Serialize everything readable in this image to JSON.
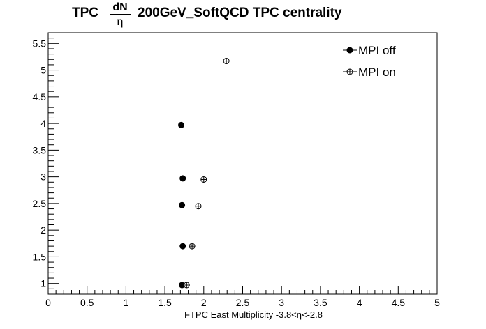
{
  "chart_data": {
    "type": "scatter",
    "title": {
      "prefix": "TPC",
      "fraction_numerator": "dN",
      "fraction_denominator": "η",
      "suffix": "200GeV_SoftQCD TPC centrality"
    },
    "xlabel": "FTPC East Multiplicity -3.8<η<-2.8",
    "ylabel": "",
    "xlim": [
      0,
      5
    ],
    "ylim": [
      0.8,
      5.7
    ],
    "x_ticks": [
      "0",
      "0.5",
      "1",
      "1.5",
      "2",
      "2.5",
      "3",
      "3.5",
      "4",
      "4.5",
      "5"
    ],
    "y_ticks": [
      "1",
      "1.5",
      "2",
      "2.5",
      "3",
      "3.5",
      "4",
      "4.5",
      "5",
      "5.5"
    ],
    "grid": false,
    "legend_position": "top-right",
    "series": [
      {
        "name": "MPI off",
        "marker": "filled-circle",
        "color": "#000000",
        "points": [
          {
            "x": 1.72,
            "y": 0.97
          },
          {
            "x": 1.73,
            "y": 1.7
          },
          {
            "x": 1.72,
            "y": 2.47
          },
          {
            "x": 1.73,
            "y": 2.97
          },
          {
            "x": 1.71,
            "y": 3.97
          }
        ]
      },
      {
        "name": "MPI on",
        "marker": "open-circle-plus",
        "color": "#000000",
        "points": [
          {
            "x": 1.78,
            "y": 0.97
          },
          {
            "x": 1.85,
            "y": 1.7
          },
          {
            "x": 1.93,
            "y": 2.45
          },
          {
            "x": 2.0,
            "y": 2.95
          },
          {
            "x": 2.29,
            "y": 5.17
          }
        ]
      }
    ]
  }
}
